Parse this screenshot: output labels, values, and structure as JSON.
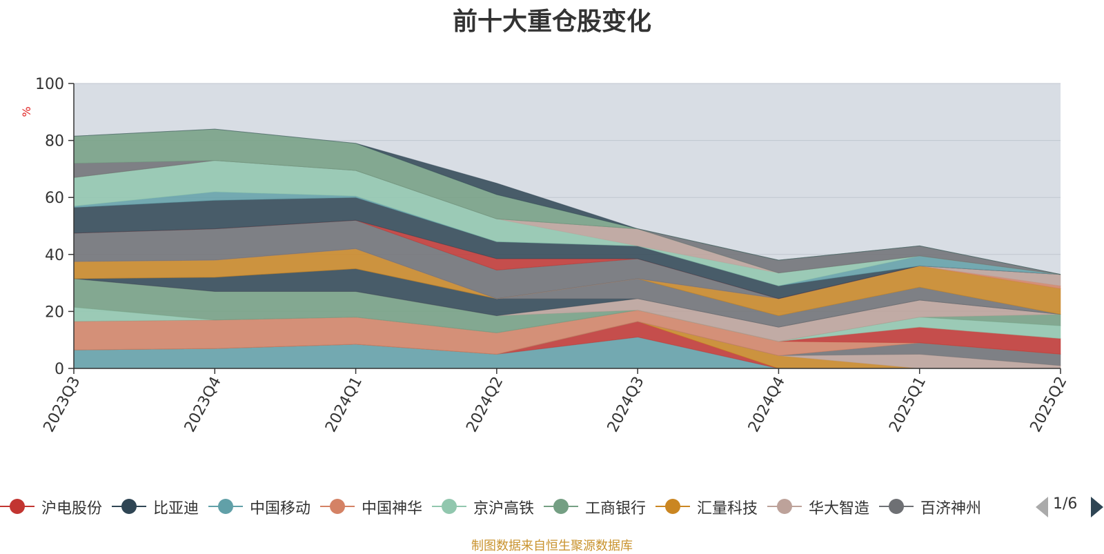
{
  "chart_data": {
    "type": "area",
    "title": "前十大重仓股变化",
    "ylabel": "%",
    "ylim": [
      0,
      100
    ],
    "yticks": [
      0,
      20,
      40,
      60,
      80,
      100
    ],
    "x": [
      "2023Q3",
      "2023Q4",
      "2024Q1",
      "2024Q2",
      "2024Q3",
      "2024Q4",
      "2025Q1",
      "2025Q2"
    ],
    "grid": true,
    "legend_position": "bottom",
    "background_color": "#d8dde4",
    "series": [
      {
        "name": "中国移动",
        "color": "#61a0a8",
        "values": [
          6.5,
          7,
          8.5,
          5,
          11,
          0,
          0,
          0
        ]
      },
      {
        "name": "沪电股份",
        "color": "#c23531",
        "values": [
          0,
          0,
          0,
          0,
          5.5,
          0,
          0,
          0
        ]
      },
      {
        "name": "汇量科技",
        "color": "#ca8622",
        "values": [
          0,
          0,
          0,
          0,
          0,
          4.5,
          0,
          0
        ]
      },
      {
        "name": "华大智造",
        "color": "#bda29a",
        "values": [
          0,
          0,
          0,
          0,
          0,
          0,
          5,
          1
        ]
      },
      {
        "name": "百济神州",
        "color": "#6e7074",
        "values": [
          0,
          0,
          0,
          0,
          0,
          0,
          4,
          4
        ]
      },
      {
        "name": "中国神华",
        "color": "#d48265",
        "values": [
          10,
          10,
          9.5,
          7.5,
          4,
          5,
          0,
          0
        ]
      },
      {
        "name": "沪电股份",
        "color": "#c23531",
        "values": [
          0,
          0,
          0,
          0,
          0,
          0,
          5.5,
          5.5
        ]
      },
      {
        "name": "京沪高铁",
        "color": "#91c7ae",
        "values": [
          5,
          0,
          0,
          0,
          0,
          0,
          3.5,
          4.5
        ]
      },
      {
        "name": "工商银行",
        "color": "#749f83",
        "values": [
          10,
          10,
          9,
          6,
          0,
          0,
          0,
          4
        ]
      },
      {
        "name": "华大智造",
        "color": "#bda29a",
        "values": [
          0,
          0,
          0,
          0,
          4,
          5,
          6,
          0
        ]
      },
      {
        "name": "比亚迪",
        "color": "#2f4554",
        "values": [
          0,
          5,
          8,
          6,
          0,
          0,
          0,
          0
        ]
      },
      {
        "name": "百济神州",
        "color": "#6e7074",
        "values": [
          0,
          0,
          0,
          0,
          7,
          4,
          4.5,
          0
        ]
      },
      {
        "name": "汇量科技",
        "color": "#ca8622",
        "values": [
          6,
          6,
          7,
          0,
          0,
          6,
          7.5,
          9
        ]
      },
      {
        "name": "中国神华",
        "color": "#d48265",
        "values": [
          0,
          0,
          0,
          0,
          0,
          0,
          0,
          1
        ]
      },
      {
        "name": "华大智造",
        "color": "#bda29a",
        "values": [
          0,
          0,
          0,
          0,
          0,
          0,
          0,
          4
        ]
      },
      {
        "name": "百济神州",
        "color": "#6e7074",
        "values": [
          10,
          11,
          10,
          10,
          7,
          0,
          0,
          0
        ]
      },
      {
        "name": "沪电股份",
        "color": "#c23531",
        "values": [
          0,
          0,
          0,
          4,
          0,
          0,
          0,
          0
        ]
      },
      {
        "name": "比亚迪",
        "color": "#2f4554",
        "values": [
          9,
          10,
          8,
          6,
          4.5,
          4.5,
          0,
          0
        ]
      },
      {
        "name": "中国移动",
        "color": "#61a0a8",
        "values": [
          0.5,
          3,
          0.5,
          0,
          0,
          0,
          3.5,
          0
        ]
      },
      {
        "name": "京沪高铁",
        "color": "#91c7ae",
        "values": [
          10,
          11,
          9,
          8,
          0,
          4.5,
          0,
          0
        ]
      },
      {
        "name": "华大智造",
        "color": "#bda29a",
        "values": [
          0,
          0,
          0,
          0,
          6,
          0,
          0,
          0
        ]
      },
      {
        "name": "工商银行",
        "color": "#749f83",
        "values": [
          0,
          0,
          0,
          0,
          0,
          0,
          0,
          0
        ]
      },
      {
        "name": "百济神州",
        "color": "#6e7074",
        "values": [
          5,
          0,
          0,
          0,
          0,
          4.5,
          3.5,
          0
        ]
      },
      {
        "name": "工商银行",
        "color": "#749f83",
        "values": [
          9.5,
          11,
          9.5,
          8.5,
          0,
          0,
          0,
          0
        ]
      },
      {
        "name": "比亚迪",
        "color": "#2f4554",
        "values": [
          0,
          0,
          0,
          4,
          0,
          0,
          0,
          0
        ]
      }
    ]
  },
  "legend": {
    "items": [
      {
        "name": "沪电股份",
        "color": "#c23531"
      },
      {
        "name": "比亚迪",
        "color": "#2f4554"
      },
      {
        "name": "中国移动",
        "color": "#61a0a8"
      },
      {
        "name": "中国神华",
        "color": "#d48265"
      },
      {
        "name": "京沪高铁",
        "color": "#91c7ae"
      },
      {
        "name": "工商银行",
        "color": "#749f83"
      },
      {
        "name": "汇量科技",
        "color": "#ca8622"
      },
      {
        "name": "华大智造",
        "color": "#bda29a"
      },
      {
        "name": "百济神州",
        "color": "#6e7074"
      }
    ],
    "page_text": "1/6",
    "prev_icon": "triangle-left-icon",
    "next_icon": "triangle-right-icon"
  },
  "footer": {
    "source_note": "制图数据来自恒生聚源数据库"
  }
}
